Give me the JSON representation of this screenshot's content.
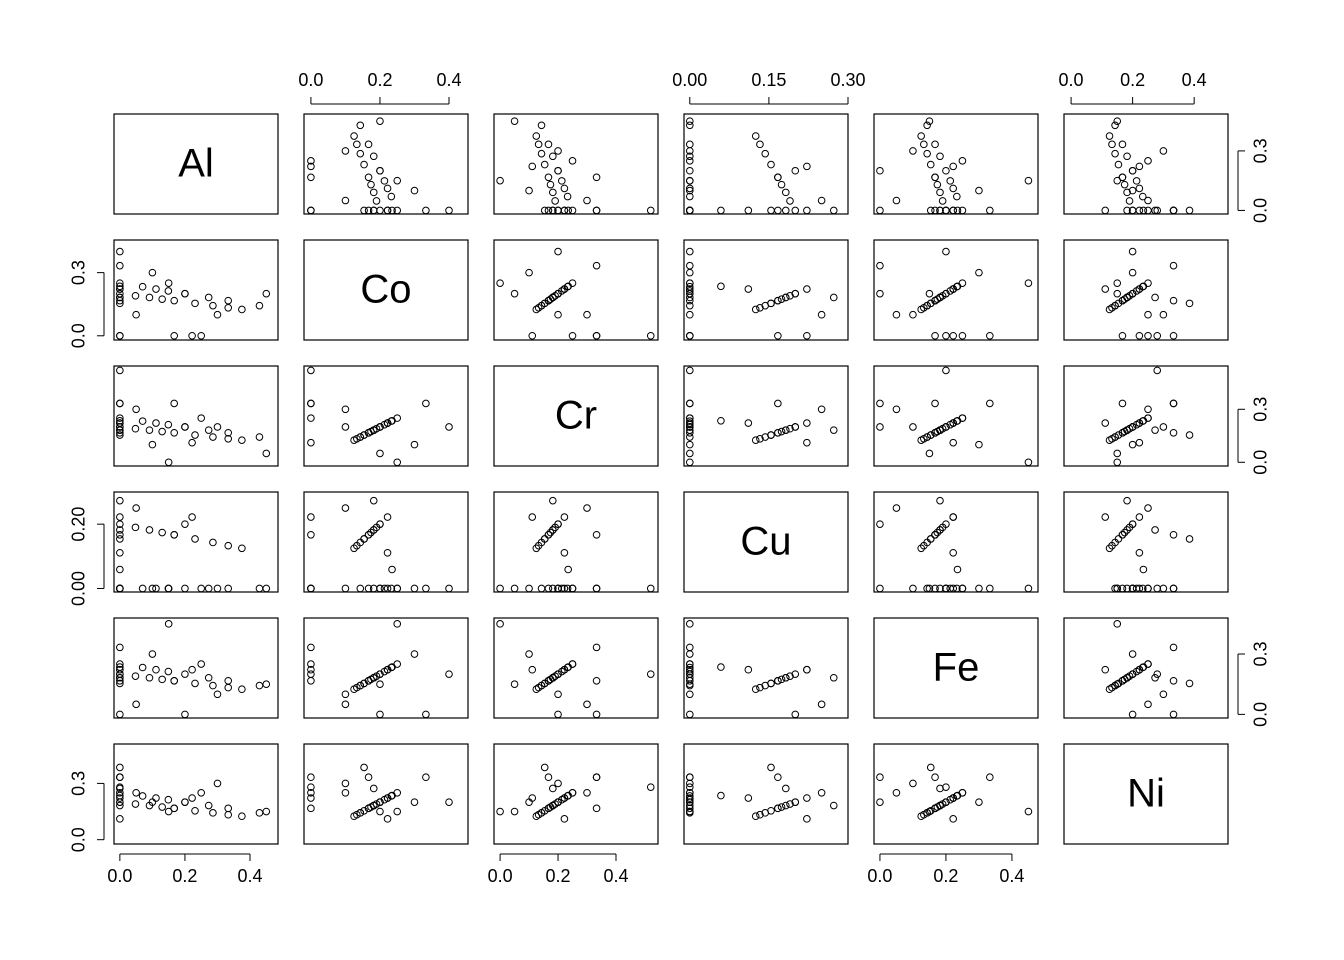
{
  "chart_data": {
    "type": "scatter-matrix",
    "variables": [
      {
        "name": "Al",
        "lim": [
          -0.018,
          0.486
        ],
        "xticks": [
          {
            "value": 0,
            "label": "0.0"
          },
          0.2,
          0.4
        ],
        "yticks": [
          {
            "value": 0,
            "label": "0.0"
          },
          0.3
        ],
        "values": [
          0,
          0.048,
          0.091,
          0.13,
          0.167,
          0.231,
          0.286,
          0.333,
          0.375,
          0,
          0.07,
          0.111,
          0.149,
          0.2,
          0.273,
          0.333,
          0.429,
          0,
          0,
          0,
          0,
          0,
          0,
          0,
          0.25,
          0,
          0,
          0.2,
          0.222,
          0.167,
          0,
          0.45,
          0,
          0.1,
          0.05,
          0.15,
          0.3
        ]
      },
      {
        "name": "Co",
        "lim": [
          -0.02,
          0.455
        ],
        "xticks": [
          {
            "value": 0,
            "label": "0.0"
          },
          0.2,
          0.4
        ],
        "yticks": [
          {
            "value": 0,
            "label": "0.0"
          },
          0.3
        ],
        "values": [
          0.2,
          0.19,
          0.182,
          0.174,
          0.167,
          0.154,
          0.143,
          0.133,
          0.125,
          0.25,
          0.233,
          0.222,
          0.213,
          0.2,
          0.182,
          0.167,
          0.143,
          0.235,
          0.222,
          0.182,
          0.222,
          0.182,
          0.167,
          0.154,
          0,
          0,
          0.333,
          0.2,
          0,
          0,
          0.4,
          0.2,
          0,
          0.3,
          0.1,
          0.25,
          0.1
        ]
      },
      {
        "name": "Cr",
        "lim": [
          -0.021,
          0.545
        ],
        "xticks": [
          {
            "value": 0,
            "label": "0.0"
          },
          0.2,
          0.4
        ],
        "yticks": [
          {
            "value": 0,
            "label": "0.0"
          },
          0.3
        ],
        "values": [
          0.2,
          0.19,
          0.182,
          0.174,
          0.167,
          0.154,
          0.143,
          0.133,
          0.125,
          0.25,
          0.233,
          0.222,
          0.213,
          0.2,
          0.182,
          0.167,
          0.143,
          0.235,
          0.222,
          0.182,
          0.222,
          0.182,
          0.167,
          0.154,
          0.25,
          0.333,
          0.333,
          0.2,
          0.111,
          0.333,
          0.2,
          0.05,
          0.52,
          0.1,
          0.3,
          0,
          0.2
        ]
      },
      {
        "name": "Cu",
        "lim": [
          -0.011,
          0.3
        ],
        "xticks": [
          {
            "value": 0,
            "label": "0.00"
          },
          0.15,
          {
            "value": 0.3,
            "label": "0.30"
          }
        ],
        "yticks": [
          {
            "value": 0,
            "label": "0.00"
          },
          {
            "value": 0.2,
            "label": "0.20"
          }
        ],
        "values": [
          0.2,
          0.19,
          0.182,
          0.174,
          0.167,
          0.154,
          0.143,
          0.133,
          0.125,
          0,
          0,
          0,
          0,
          0,
          0,
          0,
          0,
          0.059,
          0.111,
          0.273,
          0.222,
          0.182,
          0.167,
          0.154,
          0,
          0,
          0,
          0.2,
          0.222,
          0.167,
          0,
          0,
          0,
          0,
          0.25,
          0,
          0
        ]
      },
      {
        "name": "Fe",
        "lim": [
          -0.018,
          0.479
        ],
        "xticks": [
          {
            "value": 0,
            "label": "0.0"
          },
          0.2,
          0.4
        ],
        "yticks": [
          {
            "value": 0,
            "label": "0.0"
          },
          0.3
        ],
        "values": [
          0.2,
          0.19,
          0.182,
          0.174,
          0.167,
          0.154,
          0.143,
          0.133,
          0.125,
          0.25,
          0.233,
          0.222,
          0.213,
          0.2,
          0.182,
          0.167,
          0.143,
          0.235,
          0.222,
          0.182,
          0.222,
          0.182,
          0.167,
          0.154,
          0.25,
          0.333,
          0,
          0,
          0.222,
          0.167,
          0.2,
          0.15,
          0.2,
          0.3,
          0.05,
          0.45,
          0.1
        ]
      },
      {
        "name": "Ni",
        "lim": [
          -0.023,
          0.51
        ],
        "xticks": [
          {
            "value": 0,
            "label": "0.0"
          },
          0.2,
          0.4
        ],
        "yticks": [
          {
            "value": 0,
            "label": "0.0"
          },
          0.3
        ],
        "values": [
          0.2,
          0.19,
          0.182,
          0.174,
          0.167,
          0.154,
          0.143,
          0.133,
          0.125,
          0.25,
          0.233,
          0.222,
          0.213,
          0.2,
          0.182,
          0.167,
          0.143,
          0.235,
          0.222,
          0.182,
          0.111,
          0.273,
          0.333,
          0.385,
          0.25,
          0.333,
          0.333,
          0.2,
          0.222,
          0.167,
          0.2,
          0.15,
          0.28,
          0.2,
          0.25,
          0.15,
          0.3
        ]
      }
    ]
  }
}
